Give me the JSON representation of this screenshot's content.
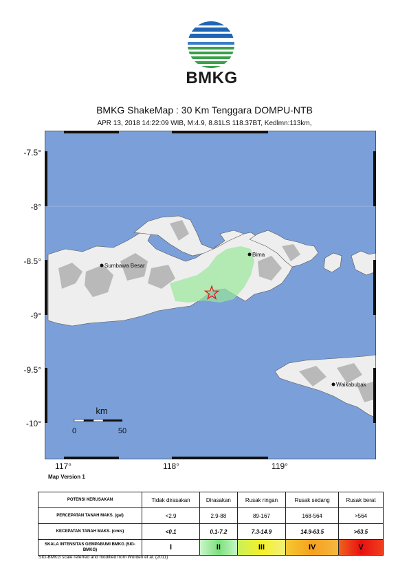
{
  "header": {
    "logo_text": "BMKG",
    "title": "BMKG ShakeMap : 30 Km Tenggara DOMPU-NTB",
    "subtitle": "APR 13, 2018 14:22:09 WIB, M:4.9, 8.81LS 118.37BT, Kedlmn:113km,"
  },
  "map": {
    "lat_labels": [
      "-7.5°",
      "-8°",
      "-8.5°",
      "-9°",
      "-9.5°",
      "-10°"
    ],
    "lon_labels": [
      "117°",
      "118°",
      "119°"
    ],
    "places": [
      {
        "name": "Sumbawa Besar"
      },
      {
        "name": "Bima"
      },
      {
        "name": "Waikabubak"
      }
    ],
    "scale": {
      "unit": "km",
      "min": "0",
      "max": "50"
    },
    "epicenter": {
      "lat": -8.81,
      "lon": 118.37
    },
    "version": "Map Version 1",
    "colors": {
      "sea": "#7a9fd9",
      "land": "#eeeeee",
      "shade": "#a8a8a8",
      "intensity_ii": "#9ae79a",
      "epicenter": "#e8141a"
    }
  },
  "legend": {
    "rows": [
      {
        "label": "POTENSI KERUSAKAN",
        "cells": [
          "Tidak dirasakan",
          "Dirasakan",
          "Rusak ringan",
          "Rusak sedang",
          "Rusak berat"
        ]
      },
      {
        "label": "PERCEPATAN TANAH MAKS. (gal)",
        "cells": [
          "<2.9",
          "2.9-88",
          "89-167",
          "168-564",
          ">564"
        ]
      },
      {
        "label": "KECEPATAN TANAH MAKS. (cm/s)",
        "cells": [
          "<0.1",
          "0.1-7.2",
          "7.3-14.9",
          "14.9-63.5",
          ">63.5"
        ]
      },
      {
        "label": "SKALA INTENSITAS GEMPABUMI BMKG (SIG-BMKG)",
        "cells": [
          "I",
          "II",
          "III",
          "IV",
          "V"
        ]
      }
    ],
    "footnote": "SIG-BMKG scale referred and modified from Worden et al. (2011)"
  }
}
